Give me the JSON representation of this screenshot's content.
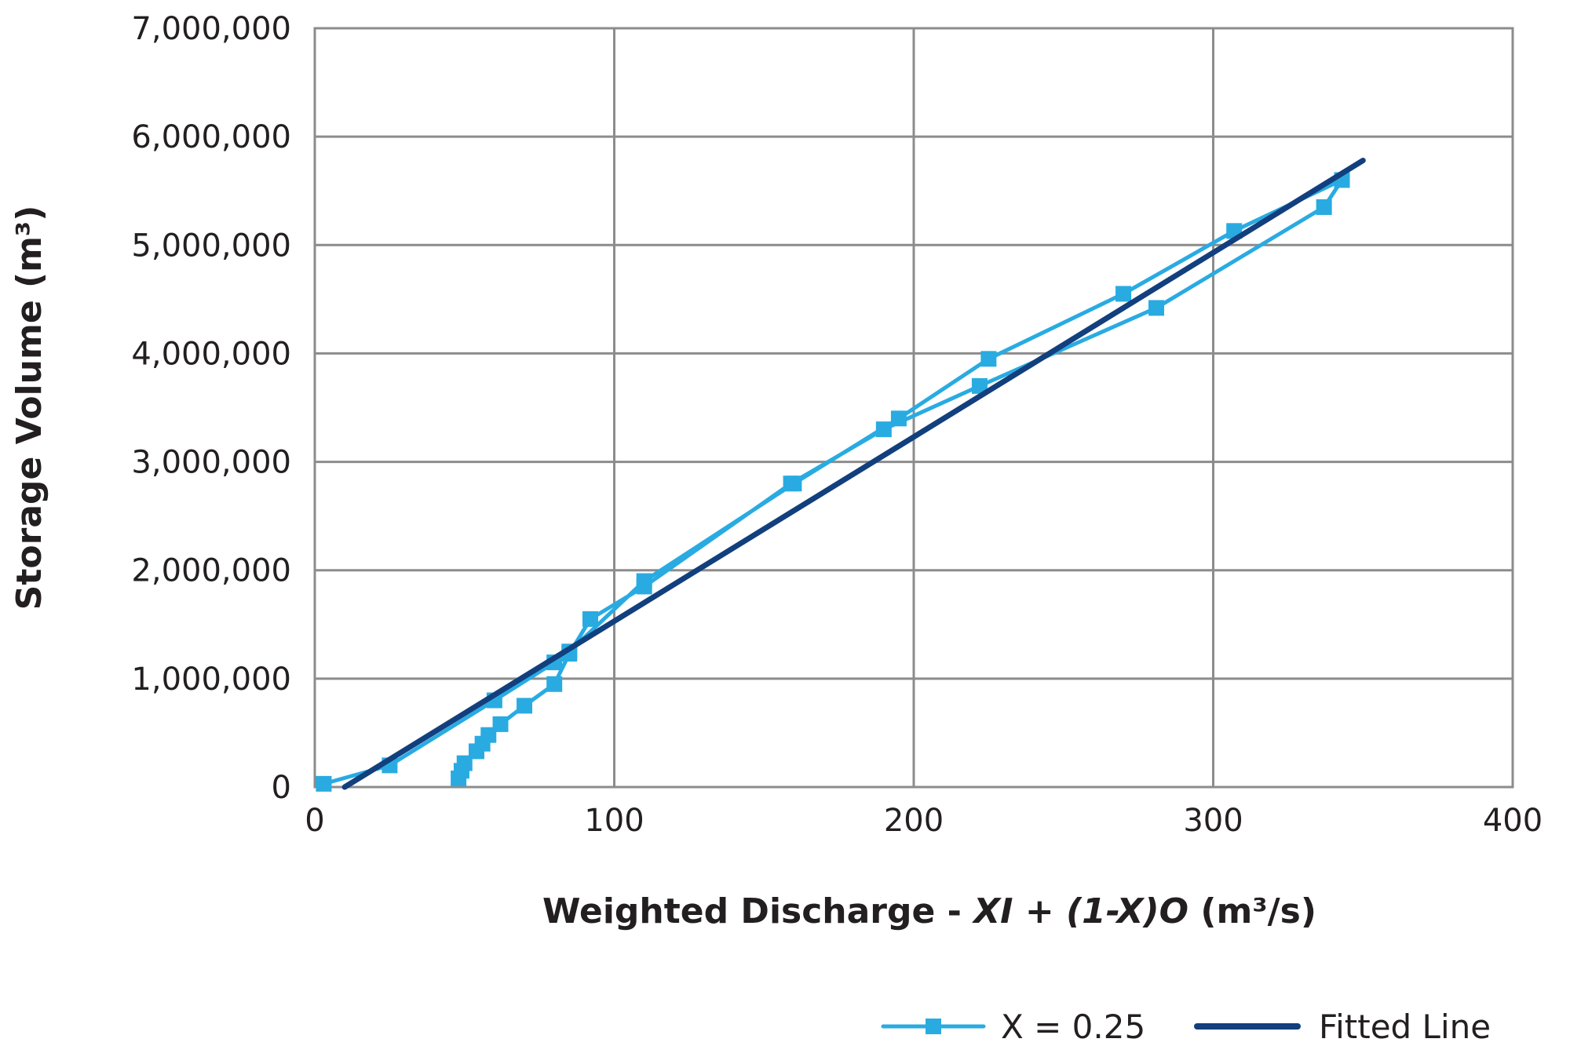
{
  "chart_data": {
    "type": "line",
    "xlabel": {
      "parts": [
        {
          "text": "Weighted Discharge - ",
          "italic": false
        },
        {
          "text": "XI",
          "italic": true
        },
        {
          "text": " + ",
          "italic": false
        },
        {
          "text": "(1-X)O",
          "italic": true
        },
        {
          "text": " (m³/s)",
          "italic": false
        }
      ]
    },
    "ylabel": "Storage Volume (m³)",
    "xlim": [
      0,
      400
    ],
    "ylim": [
      0,
      7000000
    ],
    "x_ticks": [
      {
        "value": 0,
        "label": "0"
      },
      {
        "value": 100,
        "label": "100"
      },
      {
        "value": 200,
        "label": "200"
      },
      {
        "value": 300,
        "label": "300"
      },
      {
        "value": 400,
        "label": "400"
      }
    ],
    "y_ticks": [
      {
        "value": 0,
        "label": "0"
      },
      {
        "value": 1000000,
        "label": "1,000,000"
      },
      {
        "value": 2000000,
        "label": "2,000,000"
      },
      {
        "value": 3000000,
        "label": "3,000,000"
      },
      {
        "value": 4000000,
        "label": "4,000,000"
      },
      {
        "value": 5000000,
        "label": "5,000,000"
      },
      {
        "value": 6000000,
        "label": "6,000,000"
      },
      {
        "value": 7000000,
        "label": "7,000,000"
      }
    ],
    "grid": true,
    "legend_position": "bottom-right",
    "series": [
      {
        "name": "X = 0.25",
        "color": "#29abe2",
        "marker": "square",
        "x": [
          3,
          25,
          60,
          80,
          85,
          110,
          160,
          195,
          225,
          270,
          307,
          343,
          337,
          281,
          222,
          190,
          159,
          110,
          92,
          85,
          80,
          70,
          62,
          58,
          56,
          54,
          50,
          49,
          48
        ],
        "y": [
          30000,
          200000,
          800000,
          1150000,
          1250000,
          1900000,
          2800000,
          3400000,
          3950000,
          4550000,
          5130000,
          5600000,
          5350000,
          4420000,
          3700000,
          3300000,
          2800000,
          1850000,
          1550000,
          1230000,
          950000,
          750000,
          580000,
          480000,
          400000,
          330000,
          220000,
          150000,
          80000
        ]
      },
      {
        "name": "Fitted Line",
        "color": "#123f7d",
        "marker": "none",
        "x": [
          10,
          350
        ],
        "y": [
          0,
          5780000
        ]
      }
    ]
  }
}
